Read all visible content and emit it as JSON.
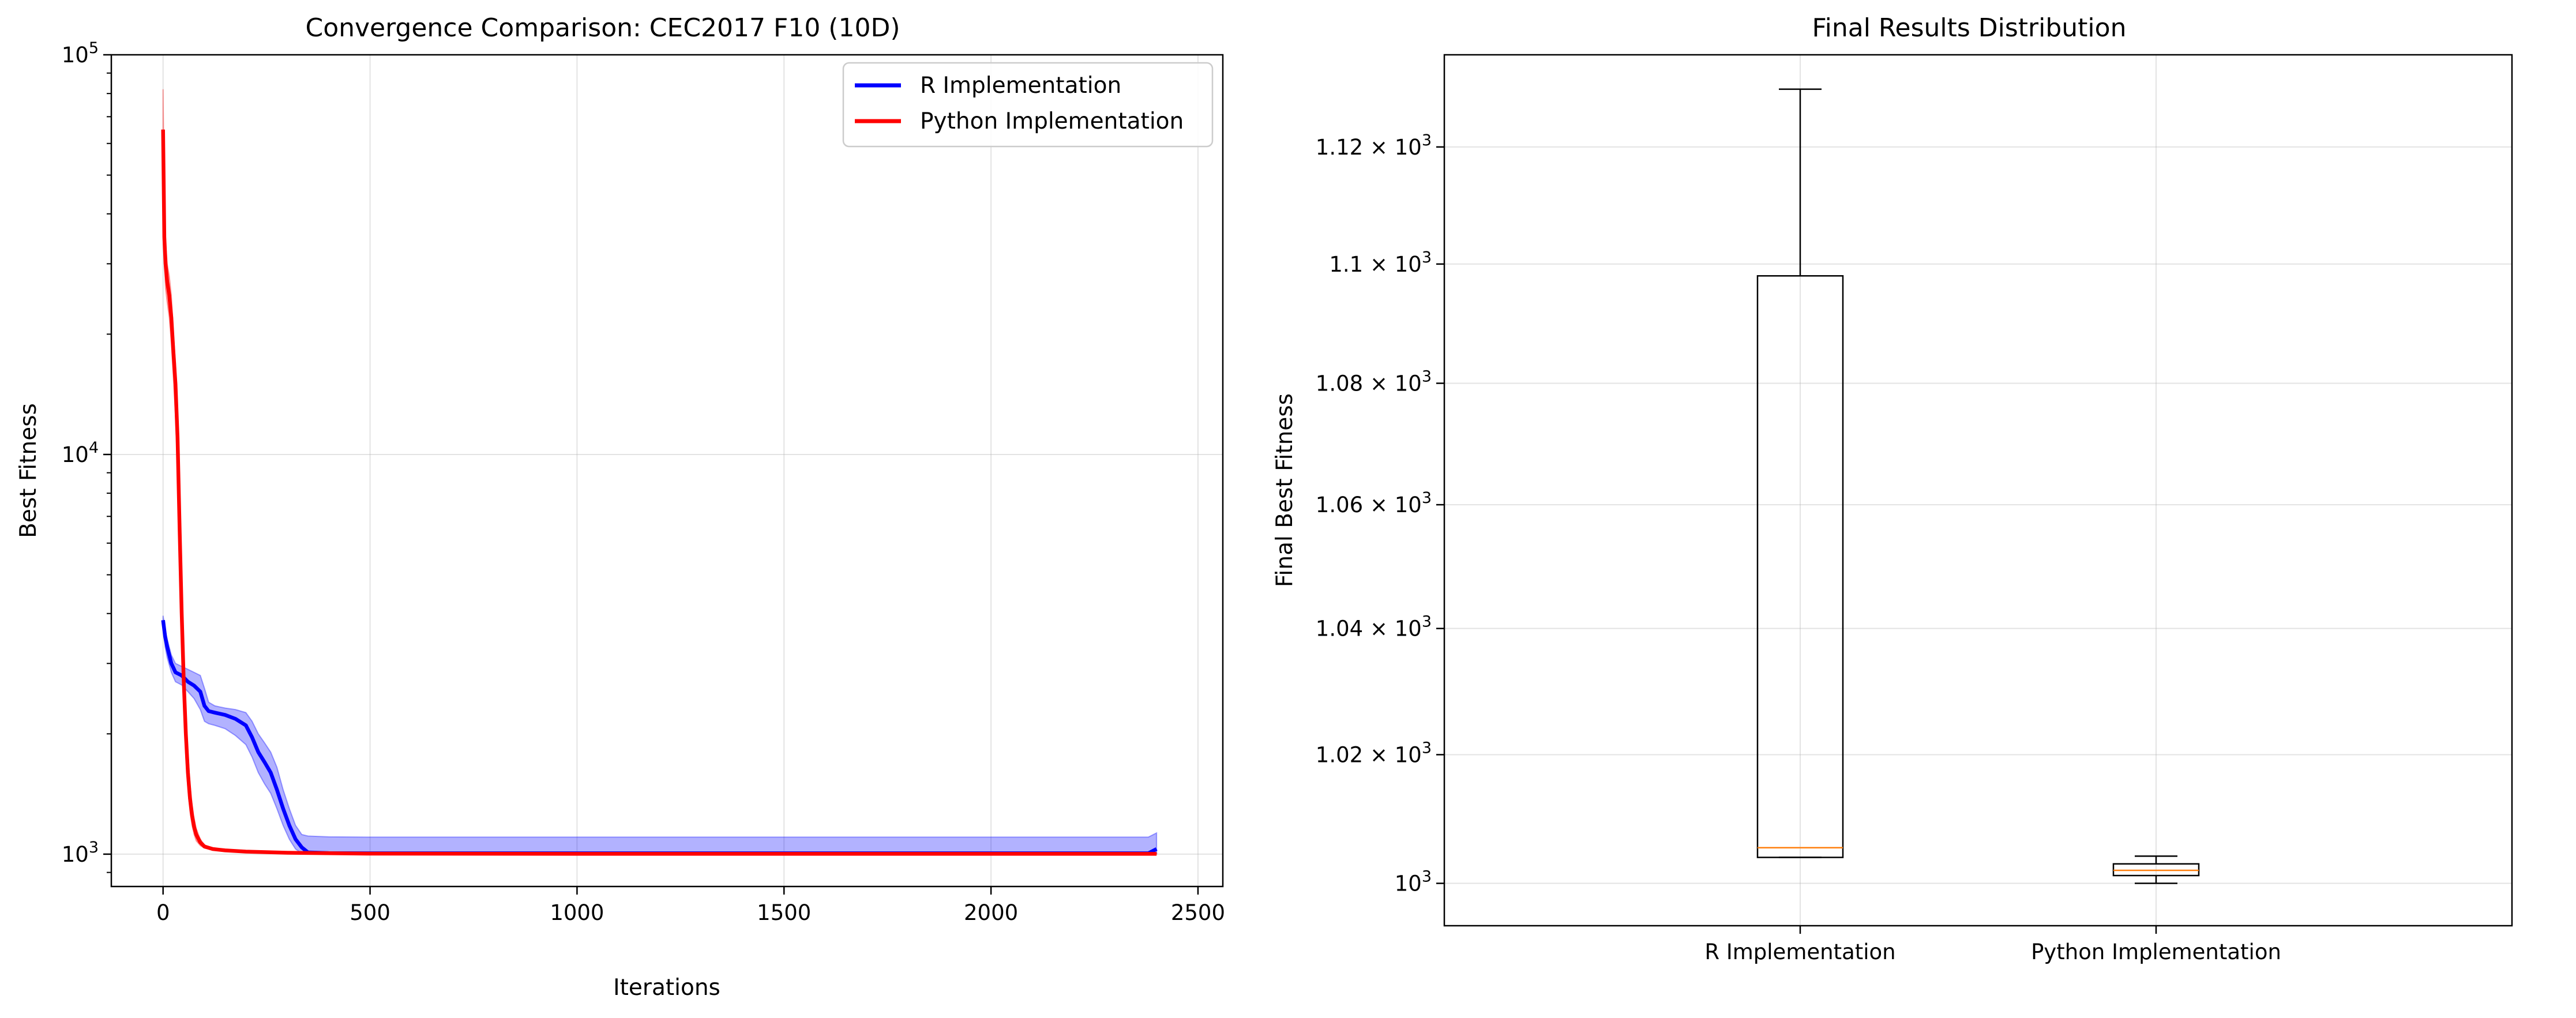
{
  "chart_data": [
    {
      "type": "line",
      "title": "Convergence Comparison: CEC2017 F10 (10D)",
      "xlabel": "Iterations",
      "ylabel": "Best Fitness",
      "yscale": "log",
      "xlim": [
        -125,
        2560
      ],
      "ylim": [
        830,
        100000
      ],
      "xticks": [
        0,
        500,
        1000,
        1500,
        2000,
        2500
      ],
      "xtick_labels": [
        "0",
        "500",
        "1000",
        "1500",
        "2000",
        "2500"
      ],
      "yticks": [
        1000,
        10000,
        100000
      ],
      "ytick_labels": [
        {
          "base": "10",
          "exp": "3"
        },
        {
          "base": "10",
          "exp": "4"
        },
        {
          "base": "10",
          "exp": "5"
        }
      ],
      "grid": true,
      "legend_position": "top-right",
      "series": [
        {
          "name": "R Implementation",
          "color": "#0000ff",
          "x": [
            0,
            5,
            10,
            20,
            30,
            45,
            60,
            75,
            90,
            100,
            110,
            125,
            150,
            175,
            200,
            215,
            230,
            245,
            260,
            275,
            290,
            305,
            320,
            335,
            350,
            400,
            500,
            1000,
            1500,
            2000,
            2380,
            2400
          ],
          "y": [
            3850,
            3500,
            3300,
            3000,
            2850,
            2800,
            2700,
            2640,
            2550,
            2350,
            2280,
            2260,
            2230,
            2180,
            2100,
            1960,
            1800,
            1700,
            1600,
            1450,
            1300,
            1180,
            1090,
            1040,
            1010,
            1006,
            1005,
            1005,
            1005,
            1005,
            1005,
            1030
          ],
          "band_upper": [
            3950,
            3650,
            3450,
            3150,
            3000,
            2950,
            2900,
            2850,
            2800,
            2600,
            2400,
            2350,
            2320,
            2300,
            2260,
            2150,
            2000,
            1900,
            1800,
            1650,
            1450,
            1300,
            1180,
            1120,
            1110,
            1105,
            1103,
            1103,
            1103,
            1103,
            1103,
            1130
          ],
          "band_lower": [
            3700,
            3300,
            3100,
            2850,
            2700,
            2650,
            2550,
            2450,
            2300,
            2150,
            2120,
            2100,
            2060,
            1980,
            1880,
            1750,
            1600,
            1500,
            1420,
            1300,
            1180,
            1090,
            1030,
            1005,
            1003,
            1003,
            1003,
            1003,
            1003,
            1003,
            1003,
            1003
          ]
        },
        {
          "name": "Python Implementation",
          "color": "#ff0000",
          "x": [
            0,
            3,
            6,
            10,
            15,
            20,
            25,
            30,
            35,
            40,
            45,
            50,
            55,
            60,
            65,
            70,
            75,
            80,
            90,
            100,
            120,
            150,
            200,
            300,
            500,
            1000,
            1500,
            2000,
            2400
          ],
          "y": [
            65000,
            35000,
            30000,
            27000,
            25000,
            22000,
            18000,
            15000,
            11000,
            6500,
            4000,
            2700,
            2000,
            1600,
            1380,
            1250,
            1170,
            1120,
            1070,
            1045,
            1030,
            1022,
            1015,
            1008,
            1003,
            1002,
            1002,
            1002,
            1002
          ],
          "band_upper": [
            82000,
            42000,
            34000,
            30000,
            28000,
            25000,
            20000,
            17000,
            13000,
            7500,
            4800,
            3200,
            2300,
            1800,
            1500,
            1330,
            1230,
            1160,
            1090,
            1055,
            1035,
            1025,
            1018,
            1010,
            1005,
            1004,
            1004,
            1004,
            1004
          ],
          "band_lower": [
            55000,
            30000,
            26000,
            24000,
            22000,
            19000,
            15500,
            12500,
            9000,
            5500,
            3300,
            2300,
            1750,
            1450,
            1280,
            1180,
            1120,
            1080,
            1050,
            1035,
            1025,
            1018,
            1012,
            1006,
            1001,
            1000,
            1000,
            1000,
            1000
          ]
        }
      ]
    },
    {
      "type": "box",
      "title": "Final Results Distribution",
      "xlabel": "",
      "ylabel": "Final Best Fitness",
      "yscale": "log",
      "ylim": [
        993.5,
        1136
      ],
      "categories": [
        "R Implementation",
        "Python Implementation"
      ],
      "yticks": [
        1000,
        1020,
        1040,
        1060,
        1080,
        1100,
        1120
      ],
      "ytick_labels": [
        {
          "base": "10",
          "exp": "3",
          "mantissa": ""
        },
        {
          "base": "10",
          "exp": "3",
          "mantissa": "1.02 × "
        },
        {
          "base": "10",
          "exp": "3",
          "mantissa": "1.04 × "
        },
        {
          "base": "10",
          "exp": "3",
          "mantissa": "1.06 × "
        },
        {
          "base": "10",
          "exp": "3",
          "mantissa": "1.08 × "
        },
        {
          "base": "10",
          "exp": "3",
          "mantissa": "1.1 × "
        },
        {
          "base": "10",
          "exp": "3",
          "mantissa": "1.12 × "
        }
      ],
      "grid": true,
      "median_color": "#ff7f0e",
      "boxes": [
        {
          "whisker_low": 1004,
          "q1": 1004,
          "median": 1005.5,
          "q3": 1098,
          "whisker_high": 1130
        },
        {
          "whisker_low": 1000,
          "q1": 1001.2,
          "median": 1002,
          "q3": 1003,
          "whisker_high": 1004.2
        }
      ]
    }
  ]
}
